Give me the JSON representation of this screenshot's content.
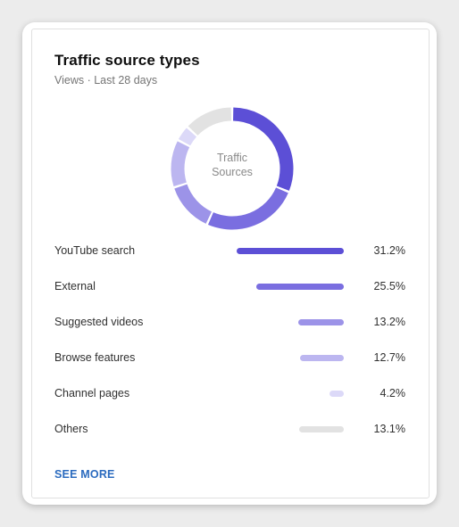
{
  "card": {
    "title": "Traffic source types",
    "subtitle": "Views · Last 28 days",
    "center_label_line1": "Traffic",
    "center_label_line2": "Sources",
    "see_more_label": "SEE MORE"
  },
  "chart_data": {
    "type": "pie",
    "title": "",
    "center_label": "Traffic Sources",
    "categories": [
      "YouTube search",
      "External",
      "Suggested videos",
      "Browse features",
      "Channel pages",
      "Others"
    ],
    "values": [
      31.2,
      25.5,
      13.2,
      12.7,
      4.2,
      13.1
    ],
    "value_labels": [
      "31.2%",
      "25.5%",
      "13.2%",
      "12.7%",
      "4.2%",
      "13.1%"
    ],
    "colors": [
      "#5c4fd6",
      "#7a6ee0",
      "#9c93e8",
      "#bcb6f0",
      "#dcd9f8",
      "#e2e2e2"
    ]
  }
}
